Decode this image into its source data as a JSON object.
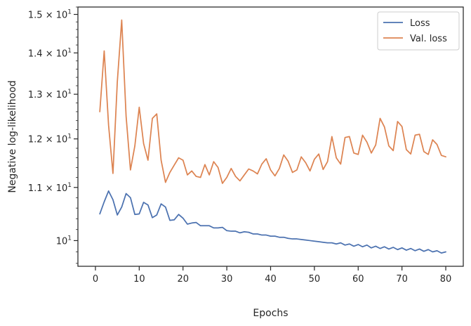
{
  "chart_data": {
    "type": "line",
    "title": "",
    "xlabel": "Epochs",
    "ylabel": "Negative log-likelihood",
    "yscale": "log",
    "xlim": [
      -4,
      84
    ],
    "ylim": [
      9.55,
      15.2
    ],
    "x_ticks": [
      0,
      10,
      20,
      30,
      40,
      50,
      60,
      70,
      80
    ],
    "x_tick_labels": [
      "0",
      "10",
      "20",
      "30",
      "40",
      "50",
      "60",
      "70",
      "80"
    ],
    "y_ticks": [
      10,
      11,
      12,
      13,
      14,
      15
    ],
    "y_tick_labels": [
      {
        "base": "10",
        "exp": "1",
        "mult": ""
      },
      {
        "base": "10",
        "exp": "1",
        "mult": "1.1 × "
      },
      {
        "base": "10",
        "exp": "1",
        "mult": "1.2 × "
      },
      {
        "base": "10",
        "exp": "1",
        "mult": "1.3 × "
      },
      {
        "base": "10",
        "exp": "1",
        "mult": "1.4 × "
      },
      {
        "base": "10",
        "exp": "1",
        "mult": "1.5 × "
      }
    ],
    "grid": false,
    "legend_position": "top-right",
    "x": [
      1,
      2,
      3,
      4,
      5,
      6,
      7,
      8,
      9,
      10,
      11,
      12,
      13,
      14,
      15,
      16,
      17,
      18,
      19,
      20,
      21,
      22,
      23,
      24,
      25,
      26,
      27,
      28,
      29,
      30,
      31,
      32,
      33,
      34,
      35,
      36,
      37,
      38,
      39,
      40,
      41,
      42,
      43,
      44,
      45,
      46,
      47,
      48,
      49,
      50,
      51,
      52,
      53,
      54,
      55,
      56,
      57,
      58,
      59,
      60,
      61,
      62,
      63,
      64,
      65,
      66,
      67,
      68,
      69,
      70,
      71,
      72,
      73,
      74,
      75,
      76,
      77,
      78,
      79,
      80
    ],
    "series": [
      {
        "name": "Loss",
        "color": "#4c72b0",
        "values": [
          10.49,
          10.72,
          10.93,
          10.76,
          10.47,
          10.62,
          10.88,
          10.8,
          10.48,
          10.49,
          10.71,
          10.66,
          10.42,
          10.47,
          10.68,
          10.62,
          10.37,
          10.38,
          10.48,
          10.41,
          10.3,
          10.32,
          10.33,
          10.27,
          10.27,
          10.27,
          10.23,
          10.23,
          10.24,
          10.18,
          10.17,
          10.17,
          10.14,
          10.16,
          10.15,
          10.12,
          10.12,
          10.1,
          10.1,
          10.08,
          10.08,
          10.06,
          10.06,
          10.04,
          10.03,
          10.03,
          10.02,
          10.01,
          10.0,
          9.99,
          9.98,
          9.97,
          9.96,
          9.96,
          9.94,
          9.96,
          9.92,
          9.94,
          9.9,
          9.93,
          9.89,
          9.92,
          9.87,
          9.9,
          9.86,
          9.89,
          9.85,
          9.88,
          9.84,
          9.87,
          9.83,
          9.86,
          9.82,
          9.85,
          9.81,
          9.84,
          9.8,
          9.82,
          9.78,
          9.8
        ]
      },
      {
        "name": "Val. loss",
        "color": "#dd8452",
        "values": [
          12.6,
          14.05,
          12.3,
          11.28,
          13.3,
          14.85,
          12.5,
          11.35,
          11.85,
          12.7,
          11.9,
          11.55,
          12.45,
          12.55,
          11.55,
          11.1,
          11.3,
          11.45,
          11.6,
          11.55,
          11.25,
          11.33,
          11.22,
          11.2,
          11.46,
          11.25,
          11.52,
          11.4,
          11.08,
          11.2,
          11.38,
          11.22,
          11.13,
          11.25,
          11.37,
          11.33,
          11.27,
          11.47,
          11.58,
          11.35,
          11.23,
          11.38,
          11.66,
          11.53,
          11.3,
          11.35,
          11.62,
          11.5,
          11.33,
          11.57,
          11.68,
          11.36,
          11.52,
          12.05,
          11.6,
          11.47,
          12.03,
          12.05,
          11.7,
          11.67,
          12.08,
          11.93,
          11.7,
          11.87,
          12.45,
          12.26,
          11.85,
          11.75,
          12.38,
          12.27,
          11.77,
          11.68,
          12.08,
          12.1,
          11.73,
          11.67,
          11.98,
          11.88,
          11.65,
          11.62
        ]
      }
    ]
  }
}
